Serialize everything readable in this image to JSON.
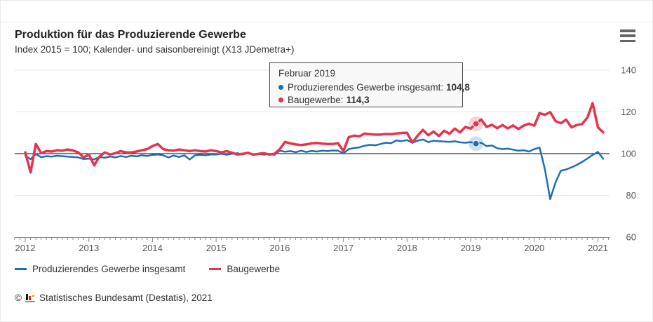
{
  "header": {
    "title": "Produktion für das Produzierende Gewerbe",
    "subtitle": "Index 2015 = 100; Kalender- und saisonbereinigt (X13 JDemetra+)"
  },
  "colors": {
    "series_total": "#1d6fb5",
    "series_construction": "#e8334d",
    "gridline": "#e6e6e6",
    "baseline": "#000000",
    "axis": "#888888",
    "axis_label": "#555555"
  },
  "tooltip": {
    "title": "Februar 2019",
    "rows": [
      {
        "label": "Produzierendes Gewerbe insgesamt:",
        "value": "104,8",
        "color": "#1d6fb5"
      },
      {
        "label": "Baugewerbe:",
        "value": "114,3",
        "color": "#e8334d"
      }
    ]
  },
  "legend": {
    "items": [
      {
        "label": "Produzierendes Gewerbe insgesamt",
        "color": "#1d6fb5"
      },
      {
        "label": "Baugewerbe",
        "color": "#e8334d"
      }
    ]
  },
  "footer": {
    "copyright_symbol": "©",
    "source": "Statistisches Bundesamt (Destatis), 2021"
  },
  "chart_data": {
    "type": "line",
    "title": "Produktion für das Produzierende Gewerbe",
    "subtitle": "Index 2015 = 100; Kalender- und saisonbereinigt (X13 JDemetra+)",
    "x_unit": "month",
    "x_start": "2012-01",
    "x_end": "2021-02",
    "x_tick_labels": [
      "2012",
      "2013",
      "2014",
      "2015",
      "2016",
      "2017",
      "2018",
      "2019",
      "2020",
      "2021"
    ],
    "ylim": [
      60,
      140
    ],
    "y_ticks": [
      60,
      80,
      100,
      120,
      140
    ],
    "baseline_value": 100,
    "legend_position": "bottom-left",
    "grid": true,
    "series": [
      {
        "name": "Produzierendes Gewerbe insgesamt",
        "color": "#1d6fb5",
        "stroke_width": 2.5,
        "values": [
          99.0,
          97.3,
          99.8,
          98.3,
          98.8,
          98.6,
          99.0,
          98.8,
          98.6,
          98.4,
          98.2,
          97.4,
          97.6,
          97.2,
          98.4,
          98.0,
          98.6,
          98.2,
          98.9,
          98.4,
          99.0,
          98.7,
          99.2,
          98.9,
          99.4,
          99.6,
          99.2,
          98.2,
          99.1,
          98.4,
          99.2,
          97.2,
          99.2,
          99.4,
          99.2,
          99.6,
          99.6,
          99.9,
          99.5,
          99.9,
          100.2,
          99.6,
          100.4,
          99.7,
          99.9,
          99.5,
          99.9,
          99.4,
          101.4,
          100.9,
          101.2,
          100.7,
          101.4,
          100.8,
          101.3,
          101.0,
          101.4,
          101.2,
          101.5,
          101.4,
          100.1,
          102.2,
          102.7,
          103.0,
          103.8,
          104.2,
          104.0,
          104.6,
          105.2,
          105.0,
          106.3,
          106.0,
          106.5,
          105.2,
          106.2,
          106.8,
          105.5,
          106.2,
          106.0,
          105.8,
          105.6,
          105.9,
          105.4,
          105.2,
          105.5,
          104.8,
          105.2,
          103.6,
          103.9,
          102.6,
          102.2,
          102.4,
          101.9,
          101.4,
          101.6,
          101.0,
          102.2,
          102.9,
          92.5,
          78.2,
          86.2,
          91.8,
          92.4,
          93.4,
          94.6,
          96.0,
          97.6,
          99.4,
          100.8,
          97.5
        ]
      },
      {
        "name": "Baugewerbe",
        "color": "#e8334d",
        "stroke_width": 3.5,
        "values": [
          100.6,
          91.0,
          104.6,
          100.2,
          101.2,
          101.0,
          101.6,
          101.4,
          102.0,
          101.5,
          100.6,
          98.2,
          99.6,
          94.4,
          98.6,
          100.6,
          99.6,
          100.2,
          101.2,
          100.6,
          100.6,
          101.0,
          101.6,
          102.2,
          103.6,
          104.6,
          102.2,
          101.6,
          101.4,
          102.0,
          101.6,
          101.2,
          101.6,
          101.2,
          101.0,
          101.6,
          101.2,
          100.6,
          101.2,
          100.4,
          99.6,
          99.9,
          100.4,
          99.5,
          99.9,
          100.2,
          99.6,
          99.9,
          102.2,
          105.6,
          104.9,
          104.4,
          104.1,
          104.4,
          104.9,
          105.1,
          104.8,
          104.6,
          104.6,
          105.0,
          101.2,
          107.9,
          108.6,
          108.3,
          109.6,
          109.3,
          109.1,
          109.1,
          109.4,
          109.3,
          109.6,
          109.9,
          110.0,
          105.3,
          108.6,
          111.4,
          108.8,
          110.6,
          108.4,
          111.0,
          109.5,
          112.0,
          110.2,
          112.8,
          112.0,
          114.3,
          116.4,
          112.8,
          113.8,
          112.2,
          113.7,
          112.1,
          113.5,
          111.8,
          113.4,
          114.4,
          113.4,
          119.4,
          118.6,
          119.9,
          115.6,
          114.6,
          116.3,
          112.6,
          113.7,
          114.2,
          117.2,
          124.2,
          112.6,
          110.2
        ]
      }
    ],
    "highlight": {
      "label": "Februar 2019",
      "month_index": 85,
      "points": [
        {
          "series": "Produzierendes Gewerbe insgesamt",
          "value": 104.8
        },
        {
          "series": "Baugewerbe",
          "value": 114.3
        }
      ]
    }
  }
}
